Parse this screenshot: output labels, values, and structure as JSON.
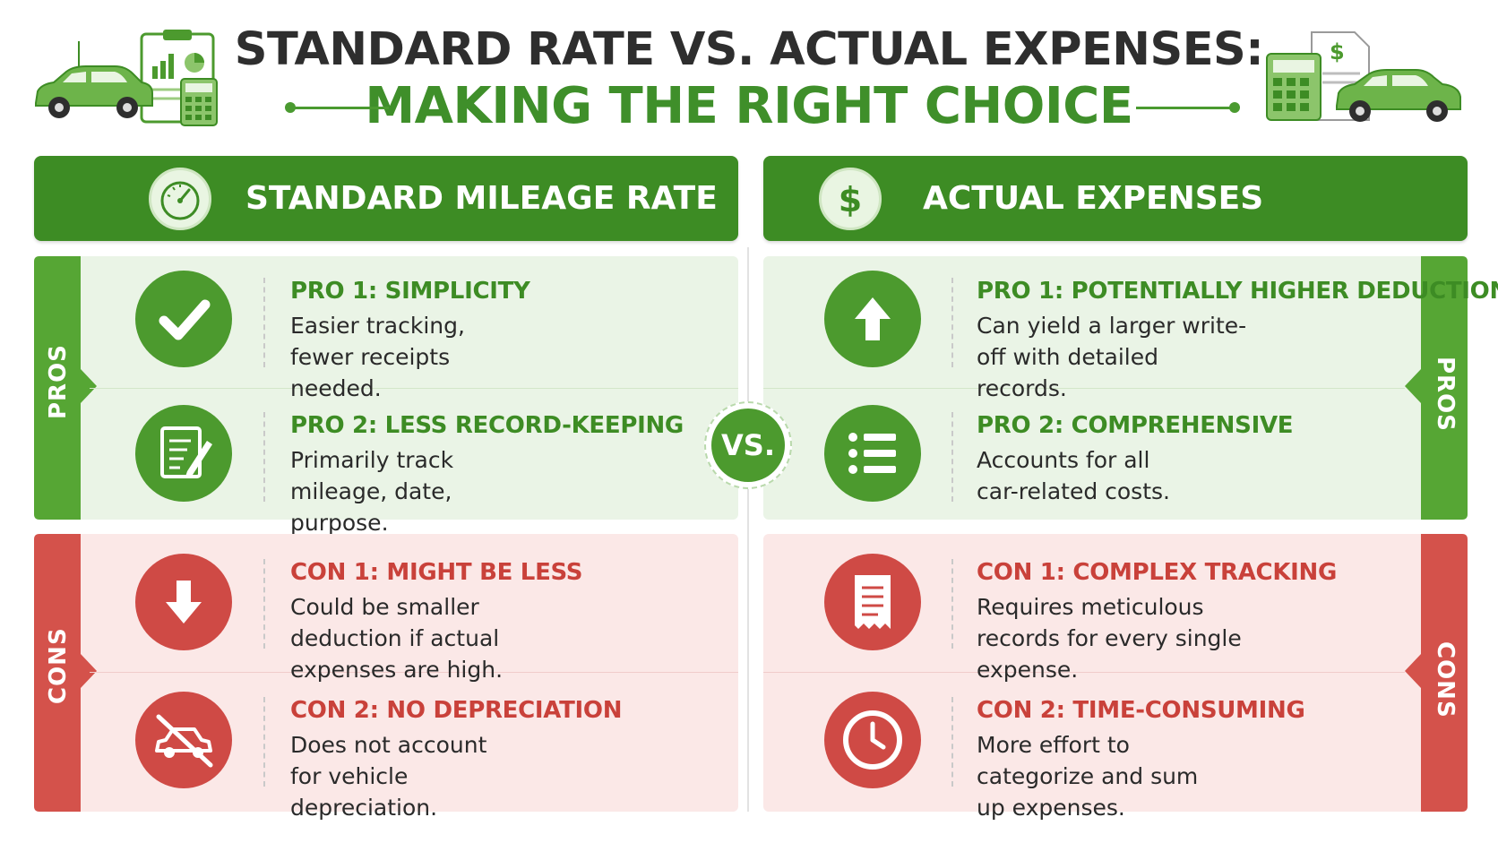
{
  "header": {
    "title_line1": "STANDARD RATE VS. ACTUAL EXPENSES:",
    "title_line2": "MAKING THE RIGHT CHOICE"
  },
  "colors": {
    "green": "#3d8c24",
    "green_light": "#eaf4e6",
    "red": "#cf4a45",
    "red_light": "#fbe8e7",
    "title_dark": "#2e2e2e"
  },
  "vs_label": "VS.",
  "left": {
    "heading": "STANDARD MILEAGE RATE",
    "heading_icon": "speedometer-icon",
    "pros_label": "PROS",
    "cons_label": "CONS",
    "pros": [
      {
        "icon": "checkmark-icon",
        "title": "PRO 1: SIMPLICITY",
        "desc": "Easier tracking, fewer receipts needed."
      },
      {
        "icon": "notepad-pencil-icon",
        "title": "PRO 2: LESS RECORD-KEEPING",
        "desc": "Primarily track mileage, date, purpose."
      }
    ],
    "cons": [
      {
        "icon": "arrow-down-icon",
        "title": "CON 1: MIGHT BE LESS",
        "desc": "Could be smaller deduction if actual expenses are high."
      },
      {
        "icon": "no-car-icon",
        "title": "CON 2: NO DEPRECIATION",
        "desc": "Does not account for vehicle depreciation."
      }
    ]
  },
  "right": {
    "heading": "ACTUAL EXPENSES",
    "heading_icon": "dollar-icon",
    "pros_label": "PROS",
    "cons_label": "CONS",
    "pros": [
      {
        "icon": "arrow-up-icon",
        "title": "PRO 1: POTENTIALLY HIGHER DEDUCTION",
        "desc": "Can yield a larger write-off with detailed records."
      },
      {
        "icon": "list-icon",
        "title": "PRO 2: COMPREHENSIVE",
        "desc": "Accounts for all car-related costs."
      }
    ],
    "cons": [
      {
        "icon": "receipt-icon",
        "title": "CON 1: COMPLEX TRACKING",
        "desc": "Requires meticulous records for every single expense."
      },
      {
        "icon": "clock-icon",
        "title": "CON 2: TIME-CONSUMING",
        "desc": "More effort to categorize and sum up expenses."
      }
    ]
  },
  "decor": {
    "left_icons": [
      "car-icon",
      "clipboard-chart-icon",
      "calculator-icon"
    ],
    "right_icons": [
      "calculator-icon",
      "dollar-document-icon",
      "car-icon"
    ]
  }
}
